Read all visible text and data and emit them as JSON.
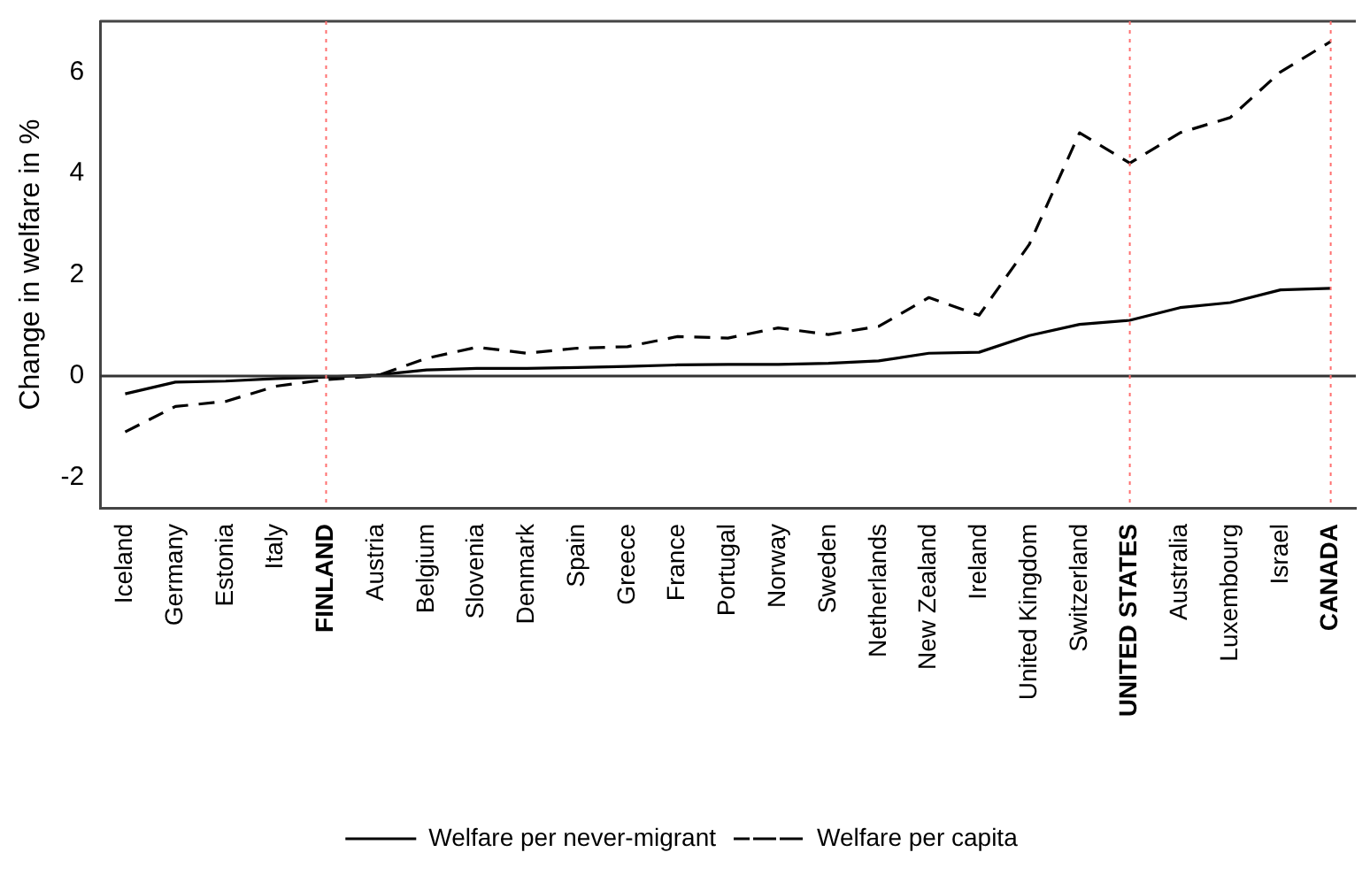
{
  "chart_data": {
    "type": "line",
    "ylabel": "Change in welfare in %",
    "categories": [
      "Iceland",
      "Germany",
      "Estonia",
      "Italy",
      "FINLAND",
      "Austria",
      "Belgium",
      "Slovenia",
      "Denmark",
      "Spain",
      "Greece",
      "France",
      "Portugal",
      "Norway",
      "Sweden",
      "Netherlands",
      "New Zealand",
      "Ireland",
      "United Kingdom",
      "Switzerland",
      "UNITED STATES",
      "Australia",
      "Luxembourg",
      "Israel",
      "CANADA"
    ],
    "series": [
      {
        "name": "Welfare per never-migrant",
        "color": "#000000",
        "line_style": "solid",
        "values": [
          -0.35,
          -0.12,
          -0.1,
          -0.05,
          -0.02,
          0.02,
          0.12,
          0.15,
          0.15,
          0.17,
          0.19,
          0.22,
          0.23,
          0.23,
          0.25,
          0.3,
          0.45,
          0.47,
          0.8,
          1.02,
          1.1,
          1.35,
          1.45,
          1.7,
          1.73
        ]
      },
      {
        "name": "Welfare per capita",
        "color": "#000000",
        "line_style": "dashed",
        "values": [
          -1.1,
          -0.6,
          -0.5,
          -0.2,
          -0.07,
          0.0,
          0.35,
          0.57,
          0.45,
          0.55,
          0.58,
          0.78,
          0.75,
          0.95,
          0.82,
          0.98,
          1.55,
          1.2,
          2.6,
          4.8,
          4.2,
          4.8,
          5.1,
          6.0,
          6.6
        ]
      }
    ],
    "ylim": [
      -2.6,
      7
    ],
    "yticks": [
      -2,
      0,
      2,
      4,
      6
    ],
    "ref_lines": [
      {
        "axis": "y",
        "value": 0,
        "color": "#333333",
        "line_style": "solid"
      },
      {
        "axis": "x",
        "value": "FINLAND",
        "color": "#ff7070",
        "line_style": "dotted"
      },
      {
        "axis": "x",
        "value": "UNITED STATES",
        "color": "#ff7070",
        "line_style": "dotted"
      },
      {
        "axis": "x",
        "value": "CANADA",
        "color": "#ff7070",
        "line_style": "dotted"
      }
    ],
    "grid": false,
    "legend": "bottom",
    "marker": "none"
  }
}
